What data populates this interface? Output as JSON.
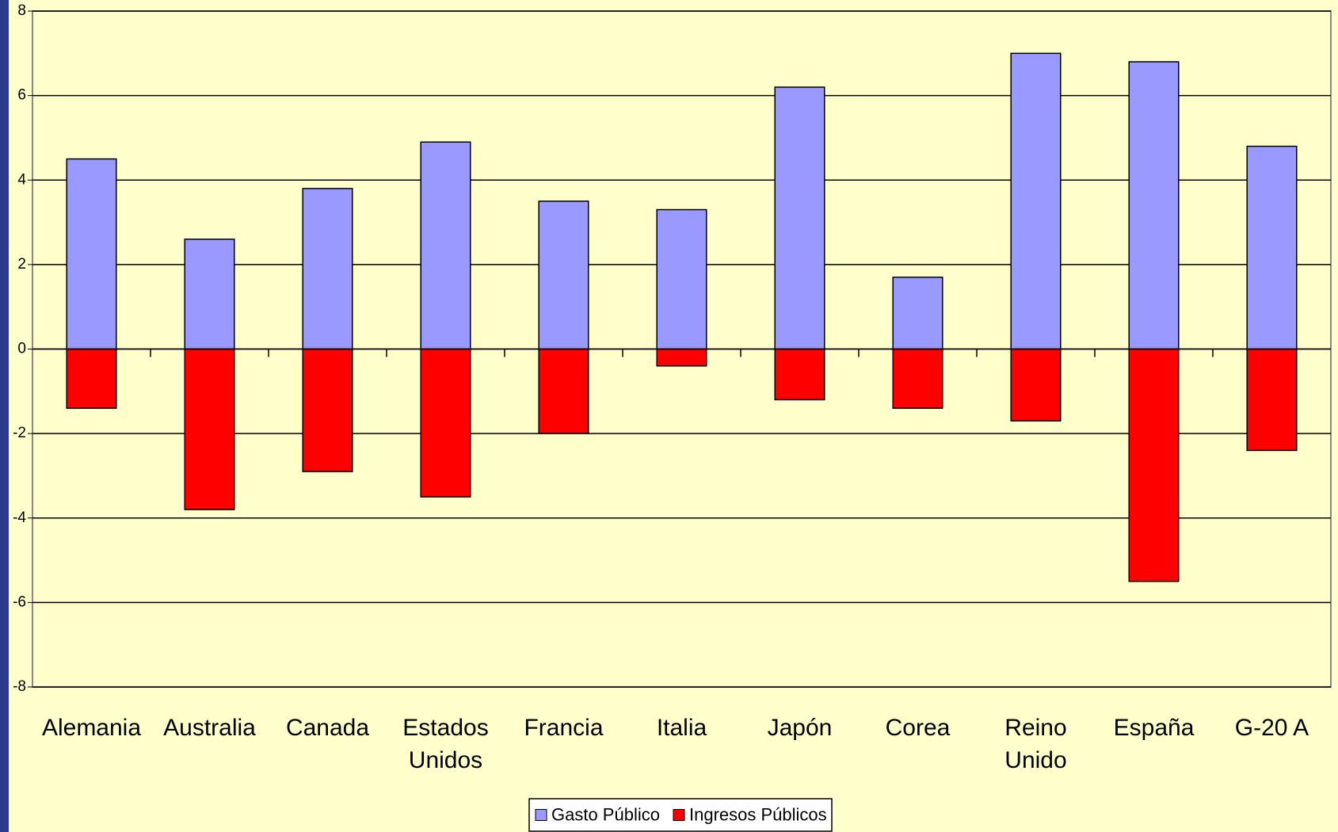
{
  "chart_data": {
    "type": "bar",
    "categories": [
      "Alemania",
      "Australia",
      "Canada",
      "Estados Unidos",
      "Francia",
      "Italia",
      "Japón",
      "Corea",
      "Reino Unido",
      "España",
      "G-20 A"
    ],
    "series": [
      {
        "name": "Gasto Público",
        "color": "#9999ff",
        "values": [
          4.5,
          2.6,
          3.8,
          4.9,
          3.5,
          3.3,
          6.2,
          1.7,
          7.0,
          6.8,
          4.8
        ]
      },
      {
        "name": "Ingresos Públicos",
        "color": "#ff0000",
        "values": [
          -1.4,
          -3.8,
          -2.9,
          -3.5,
          -2.0,
          -0.4,
          -1.2,
          -1.4,
          -1.7,
          -5.5,
          -2.4
        ]
      }
    ],
    "ylim": [
      -8,
      8
    ],
    "yticks": [
      -8,
      -6,
      -4,
      -2,
      0,
      2,
      4,
      6,
      8
    ],
    "grid": true
  }
}
